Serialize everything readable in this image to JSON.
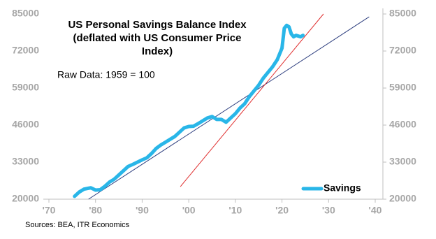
{
  "chart_data": {
    "type": "line",
    "title": [
      "US Personal Savings Balance Index",
      "(deflated with US Consumer Price",
      "Index)"
    ],
    "annotation": "Raw Data: 1959 = 100",
    "source": "Sources: BEA, ITR Economics",
    "xlim": [
      1970,
      2040
    ],
    "xticks": [
      {
        "value": 1970,
        "label": "'70"
      },
      {
        "value": 1980,
        "label": "'80"
      },
      {
        "value": 1990,
        "label": "'90"
      },
      {
        "value": 2000,
        "label": "'00"
      },
      {
        "value": 2010,
        "label": "'10"
      },
      {
        "value": 2020,
        "label": "'20"
      },
      {
        "value": 2030,
        "label": "'30"
      },
      {
        "value": 2040,
        "label": "'40"
      }
    ],
    "ylim": [
      20000,
      85000
    ],
    "yticks": [
      20000,
      33000,
      46000,
      59000,
      72000,
      85000
    ],
    "y2lim": [
      20000,
      85000
    ],
    "y2ticks": [
      20000,
      33000,
      46000,
      59000,
      72000,
      85000
    ],
    "grid": false,
    "legend": "bottom-right",
    "series": [
      {
        "name": "Savings",
        "color": "#29b6e8",
        "x": [
          1975.5,
          1976.5,
          1977.5,
          1979,
          1980,
          1981,
          1982,
          1983,
          1984,
          1985,
          1986,
          1987,
          1988,
          1989,
          1990,
          1991,
          1992,
          1993,
          1994,
          1995,
          1996,
          1997,
          1998,
          1999,
          2000,
          2001,
          2002,
          2003,
          2004,
          2005,
          2006,
          2007,
          2008,
          2009,
          2010,
          2011,
          2012,
          2013,
          2014,
          2015,
          2016,
          2017,
          2018,
          2019,
          2020,
          2020.5,
          2021,
          2021.5,
          2022,
          2022.5,
          2023,
          2024,
          2024.5
        ],
        "values": [
          21000,
          22500,
          23500,
          24000,
          23200,
          23300,
          24500,
          26000,
          27000,
          28500,
          30000,
          31500,
          32200,
          33000,
          33800,
          34500,
          36000,
          37800,
          39000,
          40000,
          41000,
          42000,
          43500,
          45000,
          45500,
          45600,
          46500,
          47500,
          48500,
          49000,
          48000,
          48000,
          47000,
          48500,
          50000,
          52000,
          53500,
          56000,
          58000,
          60000,
          62500,
          64500,
          66500,
          69000,
          73000,
          80000,
          81000,
          80500,
          78000,
          77000,
          77500,
          77000,
          77500
        ]
      }
    ],
    "trend_lines": [
      {
        "color": "#2e3f7f",
        "x": [
          1978.5,
          2038.7
        ],
        "values": [
          20000,
          84000
        ]
      },
      {
        "color": "#e03030",
        "x": [
          1998.2,
          2028.9
        ],
        "values": [
          24400,
          85000
        ]
      }
    ]
  }
}
